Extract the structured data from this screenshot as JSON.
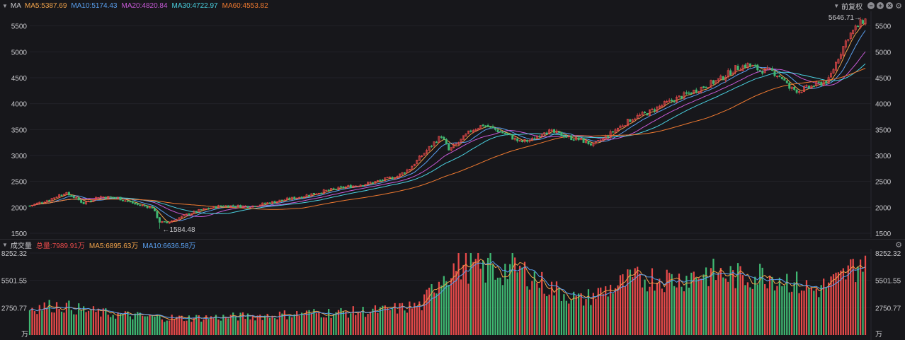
{
  "indicator_bar": {
    "name": "MA",
    "ma5": "MA5:5387.69",
    "ma10": "MA10:5174.43",
    "ma20": "MA20:4820.84",
    "ma30": "MA30:4722.97",
    "ma60": "MA60:4553.82",
    "adjust_label": "前复权"
  },
  "volume_bar": {
    "name": "成交量",
    "total": "总量:7989.91万",
    "ma5": "MA5:6895.63万",
    "ma10": "MA10:6636.58万"
  },
  "colors": {
    "up": "#e84a4a",
    "down": "#3fb872",
    "ma5": "#f0a24a",
    "ma10": "#5aa0f0",
    "ma20": "#c85ad8",
    "ma30": "#4ad0e0",
    "ma60": "#f07a30"
  },
  "chart_data": [
    {
      "type": "candlestick",
      "title": "",
      "y_ticks": [
        "5500",
        "5000",
        "4500",
        "4000",
        "3500",
        "3000",
        "2500",
        "2000",
        "1500"
      ],
      "ylim": [
        1500,
        5700
      ],
      "annotations": {
        "high": "5646.71",
        "low": "1584.48"
      },
      "anchor_prices": [
        [
          0,
          2030
        ],
        [
          8,
          2150
        ],
        [
          14,
          2280
        ],
        [
          18,
          2200
        ],
        [
          22,
          2080
        ],
        [
          28,
          2210
        ],
        [
          36,
          2180
        ],
        [
          44,
          2050
        ],
        [
          50,
          2000
        ],
        [
          53,
          1720
        ],
        [
          56,
          1700
        ],
        [
          60,
          1780
        ],
        [
          64,
          1860
        ],
        [
          70,
          1950
        ],
        [
          78,
          2030
        ],
        [
          90,
          2020
        ],
        [
          100,
          2110
        ],
        [
          110,
          2200
        ],
        [
          120,
          2310
        ],
        [
          130,
          2400
        ],
        [
          140,
          2480
        ],
        [
          150,
          2600
        ],
        [
          155,
          2750
        ],
        [
          160,
          3000
        ],
        [
          165,
          3250
        ],
        [
          168,
          3380
        ],
        [
          171,
          3100
        ],
        [
          175,
          3250
        ],
        [
          180,
          3480
        ],
        [
          185,
          3590
        ],
        [
          190,
          3500
        ],
        [
          195,
          3400
        ],
        [
          200,
          3260
        ],
        [
          205,
          3300
        ],
        [
          210,
          3480
        ],
        [
          215,
          3430
        ],
        [
          220,
          3350
        ],
        [
          225,
          3300
        ],
        [
          230,
          3200
        ],
        [
          234,
          3320
        ],
        [
          240,
          3530
        ],
        [
          246,
          3720
        ],
        [
          252,
          3820
        ],
        [
          258,
          3970
        ],
        [
          264,
          4100
        ],
        [
          270,
          4220
        ],
        [
          276,
          4350
        ],
        [
          282,
          4480
        ],
        [
          288,
          4680
        ],
        [
          293,
          4750
        ],
        [
          298,
          4650
        ],
        [
          303,
          4620
        ],
        [
          307,
          4500
        ],
        [
          310,
          4300
        ],
        [
          314,
          4250
        ],
        [
          320,
          4350
        ],
        [
          326,
          4450
        ],
        [
          330,
          4900
        ],
        [
          334,
          5300
        ],
        [
          338,
          5500
        ],
        [
          341,
          5646
        ]
      ],
      "ma_last_values": {
        "MA5": 5387.69,
        "MA10": 5174.43,
        "MA20": 4820.84,
        "MA30": 4722.97,
        "MA60": 4553.82
      }
    },
    {
      "type": "bar",
      "title": "成交量",
      "unit": "万",
      "y_ticks": [
        "8252.32",
        "5501.55",
        "2750.77"
      ],
      "ylim": [
        0,
        8252.32
      ],
      "anchor_volumes": [
        [
          0,
          2750
        ],
        [
          12,
          3000
        ],
        [
          20,
          2600
        ],
        [
          30,
          2200
        ],
        [
          45,
          1900
        ],
        [
          60,
          1700
        ],
        [
          80,
          1800
        ],
        [
          100,
          2000
        ],
        [
          115,
          2200
        ],
        [
          130,
          2300
        ],
        [
          145,
          2500
        ],
        [
          160,
          3000
        ],
        [
          168,
          6000
        ],
        [
          175,
          7000
        ],
        [
          182,
          6800
        ],
        [
          190,
          6200
        ],
        [
          197,
          6800
        ],
        [
          205,
          6000
        ],
        [
          210,
          5000
        ],
        [
          218,
          4200
        ],
        [
          225,
          3500
        ],
        [
          235,
          4500
        ],
        [
          245,
          5500
        ],
        [
          255,
          5800
        ],
        [
          265,
          5600
        ],
        [
          275,
          6300
        ],
        [
          285,
          6000
        ],
        [
          292,
          5800
        ],
        [
          300,
          6200
        ],
        [
          310,
          5500
        ],
        [
          320,
          4500
        ],
        [
          330,
          5500
        ],
        [
          338,
          7200
        ],
        [
          341,
          7990
        ]
      ]
    }
  ]
}
